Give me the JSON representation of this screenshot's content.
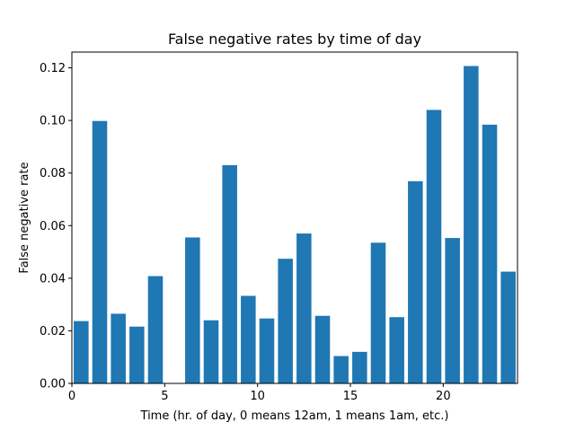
{
  "chart_data": {
    "type": "bar",
    "title": "False negative rates by time of day",
    "xlabel": "Time (hr. of day, 0 means 12am, 1 means 1am, etc.)",
    "ylabel": "False negative rate",
    "x": [
      0,
      1,
      2,
      3,
      4,
      5,
      6,
      7,
      8,
      9,
      10,
      11,
      12,
      13,
      14,
      15,
      16,
      17,
      18,
      19,
      20,
      21,
      22,
      23
    ],
    "values": [
      0.0237,
      0.0998,
      0.0265,
      0.0216,
      0.0408,
      0.0,
      0.0555,
      0.024,
      0.083,
      0.0333,
      0.0247,
      0.0474,
      0.057,
      0.0257,
      0.0104,
      0.012,
      0.0535,
      0.0252,
      0.0769,
      0.104,
      0.0553,
      0.1207,
      0.0984,
      0.0425
    ],
    "xlim": [
      0,
      24
    ],
    "ylim": [
      0,
      0.126
    ],
    "xticks": [
      0,
      5,
      10,
      15,
      20
    ],
    "xtick_labels": [
      "0",
      "5",
      "10",
      "15",
      "20"
    ],
    "yticks": [
      0,
      0.02,
      0.04,
      0.06,
      0.08,
      0.1,
      0.12
    ],
    "ytick_labels": [
      "0.00",
      "0.02",
      "0.04",
      "0.06",
      "0.08",
      "0.10",
      "0.12"
    ],
    "grid": false,
    "legend": "none",
    "bar_color": "#1f77b4"
  }
}
